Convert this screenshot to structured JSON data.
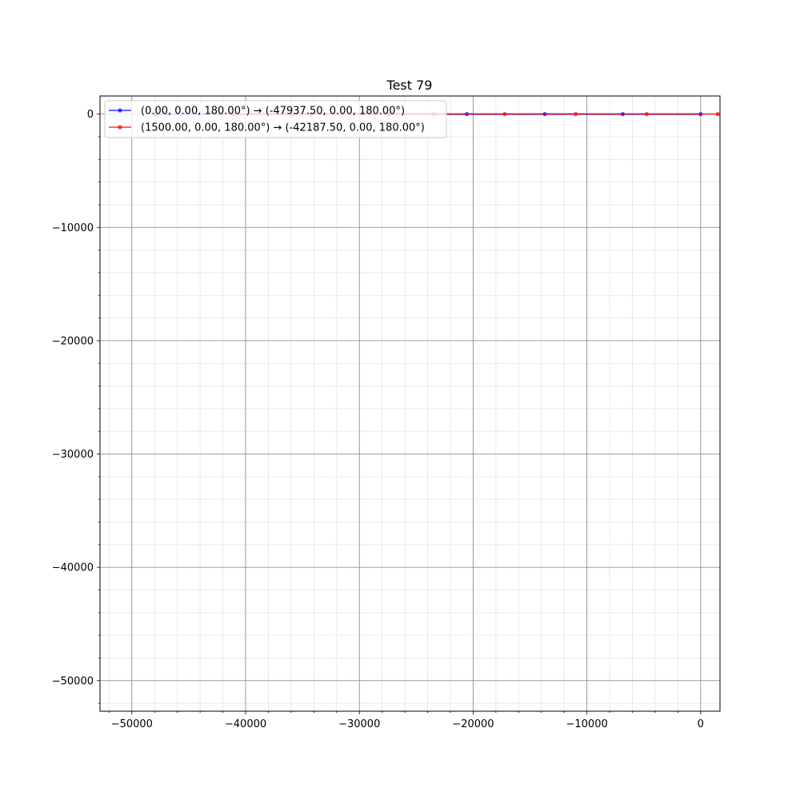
{
  "chart_data": {
    "type": "line",
    "title": "Test 79",
    "xlabel": "",
    "ylabel": "",
    "xlim": [
      -52800,
      1700
    ],
    "ylim": [
      -52700,
      1600
    ],
    "xticks": [
      -50000,
      -40000,
      -30000,
      -20000,
      -10000,
      0
    ],
    "xtick_labels": [
      "−50000",
      "−40000",
      "−30000",
      "−20000",
      "−10000",
      "0"
    ],
    "yticks": [
      0,
      -10000,
      -20000,
      -30000,
      -40000,
      -50000
    ],
    "ytick_labels": [
      "0",
      "−10000",
      "−20000",
      "−30000",
      "−40000",
      "−50000"
    ],
    "minor_step": 2000,
    "grid": true,
    "legend_position": "top-left",
    "series": [
      {
        "name": "(0.00, 0.00, 180.00°) → (-47937.50, 0.00, 180.00°)",
        "color": "#0000ff",
        "x": [
          0,
          -6850,
          -13700,
          -20550,
          -27400,
          -34250,
          -41100,
          -47937.5
        ],
        "y": [
          0,
          0,
          0,
          0,
          0,
          0,
          0,
          0
        ]
      },
      {
        "name": "(1500.00, 0.00, 180.00°) → (-42187.50, 0.00, 180.00°)",
        "color": "#ff0000",
        "x": [
          1500,
          -4740,
          -10980,
          -17220,
          -23460,
          -29700,
          -35940,
          -42187.5
        ],
        "y": [
          0,
          0,
          0,
          0,
          0,
          0,
          0,
          0
        ]
      }
    ]
  }
}
